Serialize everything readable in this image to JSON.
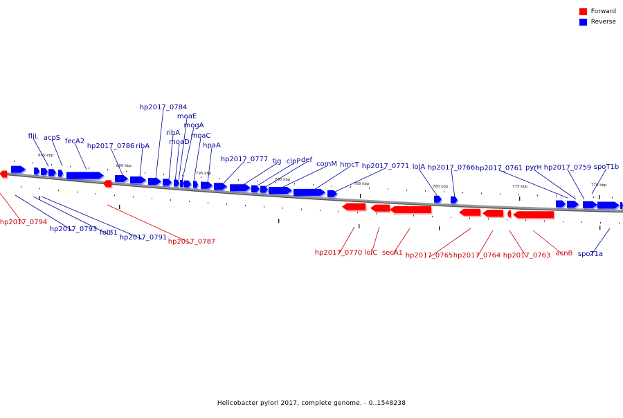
{
  "genome_title": "Helicobacter pylori 2017, complete genome. - 0..1548238",
  "legend": [
    {
      "label": "Forward",
      "color": "#ff0000"
    },
    {
      "label": "Reverse",
      "color": "#0000ff"
    }
  ],
  "colors": {
    "forward_label": "#cc0000",
    "reverse_label": "#000099",
    "backbone": "#888888"
  },
  "scale_labels": [
    "805 kbp",
    "800 kbp",
    "795 kbp",
    "790 kbp",
    "785 kbp",
    "780 kbp",
    "775 kbp",
    "770 kbp"
  ],
  "reverse_genes_top": [
    "fliL",
    "acpS",
    "fecA2",
    "hp2017_0786",
    "ribA",
    "hp2017_0784",
    "moaE",
    "mogA",
    "ribA",
    "moaD",
    "moaC",
    "hpaA",
    "hp2017_0777",
    "tig",
    "clpP",
    "def",
    "comM",
    "hmcT",
    "hp2017_0771",
    "lolA",
    "hp2017_0766",
    "hp2017_0761",
    "pyrH",
    "hp2017_0759",
    "spoT1b"
  ],
  "reverse_genes_bottom": [
    "hp2017_0793",
    "folB1",
    "hp2017_0791",
    "spoT1a"
  ],
  "forward_genes": [
    "hp2017_0794",
    "hp2017_0787",
    "hp2017_0770",
    "lolC",
    "secA1",
    "hp2017_0765",
    "hp2017_0764",
    "hp2017_0763",
    "acnB"
  ]
}
